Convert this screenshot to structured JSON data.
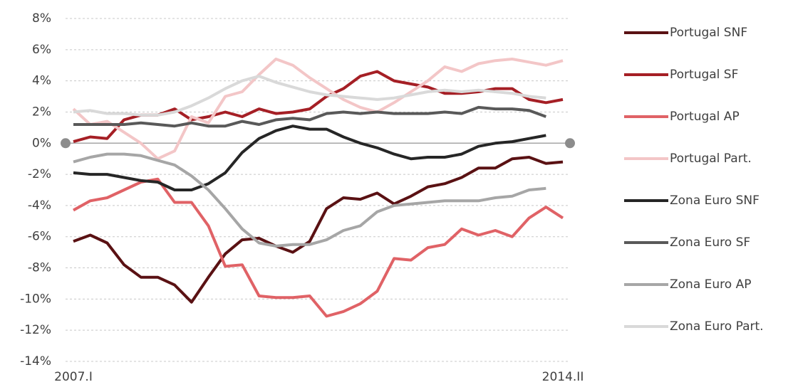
{
  "chart_data": {
    "type": "line",
    "categories": [
      "2007.I",
      null,
      null,
      null,
      null,
      null,
      null,
      null,
      null,
      null,
      null,
      null,
      null,
      null,
      null,
      null,
      null,
      null,
      null,
      null,
      null,
      null,
      null,
      null,
      null,
      null,
      null,
      null,
      null,
      "2014.II"
    ],
    "ylim": [
      -14,
      8
    ],
    "yticks": [
      {
        "value": -14,
        "label": "-14%"
      },
      {
        "value": -12,
        "label": "-12%"
      },
      {
        "value": -10,
        "label": "-10%"
      },
      {
        "value": -8,
        "label": "-8%"
      },
      {
        "value": -6,
        "label": "-6%"
      },
      {
        "value": -4,
        "label": "-4%"
      },
      {
        "value": -2,
        "label": "-2%"
      },
      {
        "value": 0,
        "label": "0%"
      },
      {
        "value": 2,
        "label": "2%"
      },
      {
        "value": 4,
        "label": "4%"
      },
      {
        "value": 6,
        "label": "6%"
      },
      {
        "value": 8,
        "label": "8%"
      }
    ],
    "grid": true,
    "legend": "right",
    "series": [
      {
        "name": "Portugal SNF",
        "color": "#5a1113",
        "values": [
          -6.3,
          -5.9,
          -6.4,
          -7.8,
          -8.6,
          -8.6,
          -9.1,
          -10.2,
          -8.6,
          -7.1,
          -6.2,
          -6.1,
          -6.6,
          -7.0,
          -6.3,
          -4.2,
          -3.5,
          -3.6,
          -3.2,
          -3.9,
          -3.4,
          -2.8,
          -2.6,
          -2.2,
          -1.6,
          -1.6,
          -1.0,
          -0.9,
          -1.3,
          -1.2
        ]
      },
      {
        "name": "Portugal SF",
        "color": "#a51f25",
        "values": [
          0.1,
          0.4,
          0.3,
          1.5,
          1.8,
          1.8,
          2.2,
          1.5,
          1.7,
          2.0,
          1.7,
          2.2,
          1.9,
          2.0,
          2.2,
          3.0,
          3.5,
          4.3,
          4.6,
          4.0,
          3.8,
          3.6,
          3.2,
          3.2,
          3.3,
          3.5,
          3.5,
          2.8,
          2.6,
          2.8
        ]
      },
      {
        "name": "Portugal AP",
        "color": "#e06266",
        "values": [
          -4.3,
          -3.7,
          -3.5,
          -3.0,
          -2.5,
          -2.3,
          -3.8,
          -3.8,
          -5.3,
          -7.9,
          -7.8,
          -9.8,
          -9.9,
          -9.9,
          -9.8,
          -11.1,
          -10.8,
          -10.3,
          -9.5,
          -7.4,
          -7.5,
          -6.7,
          -6.5,
          -5.5,
          -5.9,
          -5.6,
          -6.0,
          -4.8,
          -4.1,
          -4.8
        ]
      },
      {
        "name": "Portugal Part.",
        "color": "#f3c6c7",
        "values": [
          2.2,
          1.2,
          1.4,
          0.7,
          0.0,
          -1.0,
          -0.5,
          1.7,
          1.3,
          3.0,
          3.3,
          4.4,
          5.4,
          5.0,
          4.2,
          3.5,
          2.8,
          2.3,
          2.0,
          2.6,
          3.3,
          4.0,
          4.9,
          4.6,
          5.1,
          5.3,
          5.4,
          5.2,
          5.0,
          5.3
        ]
      },
      {
        "name": "Zona Euro SNF",
        "color": "#262626",
        "values": [
          -1.9,
          -2.0,
          -2.0,
          -2.2,
          -2.4,
          -2.5,
          -3.0,
          -3.0,
          -2.6,
          -1.9,
          -0.6,
          0.3,
          0.8,
          1.1,
          0.9,
          0.9,
          0.4,
          0.0,
          -0.3,
          -0.7,
          -1.0,
          -0.9,
          -0.9,
          -0.7,
          -0.2,
          0.0,
          0.1,
          0.3,
          0.5,
          null
        ]
      },
      {
        "name": "Zona Euro SF",
        "color": "#595959",
        "values": [
          1.2,
          1.2,
          1.2,
          1.2,
          1.3,
          1.2,
          1.1,
          1.3,
          1.1,
          1.1,
          1.4,
          1.2,
          1.5,
          1.6,
          1.5,
          1.9,
          2.0,
          1.9,
          2.0,
          1.9,
          1.9,
          1.9,
          2.0,
          1.9,
          2.3,
          2.2,
          2.2,
          2.1,
          1.7,
          null
        ]
      },
      {
        "name": "Zona Euro AP",
        "color": "#a6a6a6",
        "values": [
          -1.2,
          -0.9,
          -0.7,
          -0.7,
          -0.8,
          -1.1,
          -1.4,
          -2.1,
          -3.0,
          -4.2,
          -5.5,
          -6.4,
          -6.6,
          -6.5,
          -6.5,
          -6.2,
          -5.6,
          -5.3,
          -4.4,
          -4.0,
          -3.9,
          -3.8,
          -3.7,
          -3.7,
          -3.7,
          -3.5,
          -3.4,
          -3.0,
          -2.9,
          null
        ]
      },
      {
        "name": "Zona Euro Part.",
        "color": "#d9d9d9",
        "values": [
          2.0,
          2.1,
          1.9,
          1.9,
          1.8,
          1.8,
          2.0,
          2.4,
          2.9,
          3.5,
          4.0,
          4.3,
          3.9,
          3.6,
          3.3,
          3.1,
          3.0,
          2.9,
          2.8,
          2.9,
          3.1,
          3.3,
          3.4,
          3.3,
          3.4,
          3.3,
          3.2,
          3.0,
          2.9,
          null
        ]
      }
    ]
  }
}
